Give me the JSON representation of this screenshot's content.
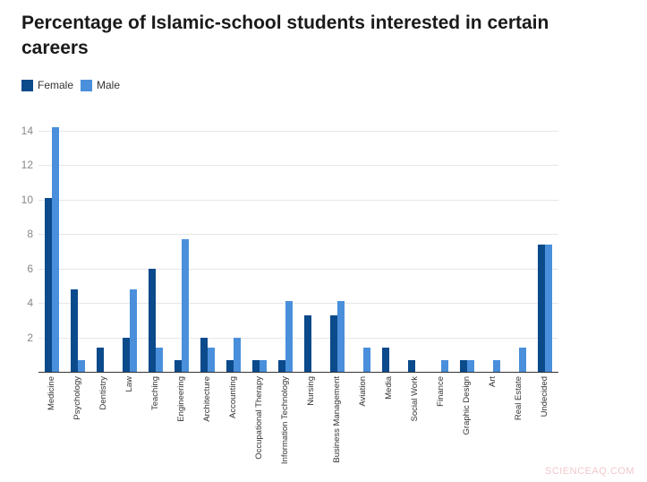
{
  "title": "Percentage of Islamic-school students interested in certain careers",
  "legend": [
    {
      "label": "Female",
      "color": "#0b4a8b"
    },
    {
      "label": "Male",
      "color": "#4a8fdb"
    }
  ],
  "watermark": "SCIENCEAQ.COM",
  "chart_data": {
    "type": "bar",
    "title": "Percentage of Islamic-school students interested in certain careers",
    "xlabel": "",
    "ylabel": "",
    "ylim": [
      0,
      14
    ],
    "yticks": [
      2,
      4,
      6,
      8,
      10,
      12,
      14
    ],
    "grid": true,
    "legend_position": "top-left",
    "categories": [
      "Medicine",
      "Psychology",
      "Dentistry",
      "Law",
      "Teaching",
      "Engineering",
      "Architecture",
      "Accounting",
      "Occupational Therapy",
      "Information Technology",
      "Nursing",
      "Business Management",
      "Aviation",
      "Media",
      "Social Work",
      "Finance",
      "Graphic Design",
      "Art",
      "Real Estate",
      "Undecided"
    ],
    "series": [
      {
        "name": "Female",
        "color": "#0b4a8b",
        "values": [
          10.1,
          4.8,
          1.4,
          2.0,
          6.0,
          0.7,
          2.0,
          0.7,
          0.7,
          0.7,
          3.3,
          3.3,
          0,
          1.4,
          0.7,
          0,
          0.7,
          0,
          0,
          7.4
        ]
      },
      {
        "name": "Male",
        "color": "#4a8fdb",
        "values": [
          14.2,
          0.7,
          0,
          4.8,
          1.4,
          7.7,
          1.4,
          2.0,
          0.7,
          4.1,
          0,
          4.1,
          1.4,
          0,
          0,
          0.7,
          0.7,
          0.7,
          1.4,
          7.4
        ]
      }
    ]
  }
}
